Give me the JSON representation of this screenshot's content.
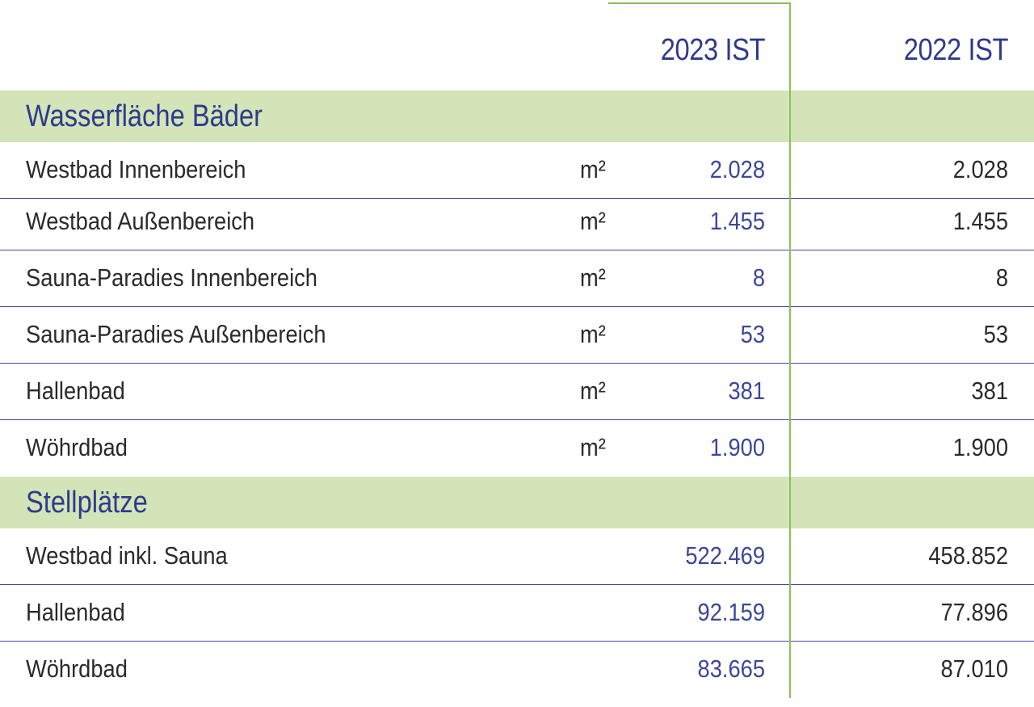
{
  "columns": {
    "year_2023": "2023 IST",
    "year_2022": "2022 IST"
  },
  "sections": [
    {
      "title": "Wasserfläche Bäder",
      "rows": [
        {
          "label": "Westbad Innenbereich",
          "unit": "m²",
          "v2023": "2.028",
          "v2022": "2.028"
        },
        {
          "label": "Westbad Außenbereich",
          "unit": "m²",
          "v2023": "1.455",
          "v2022": "1.455"
        },
        {
          "label": "Sauna-Paradies Innenbereich",
          "unit": "m²",
          "v2023": "8",
          "v2022": "8"
        },
        {
          "label": "Sauna-Paradies Außenbereich",
          "unit": "m²",
          "v2023": "53",
          "v2022": "53"
        },
        {
          "label": "Hallenbad",
          "unit": "m²",
          "v2023": "381",
          "v2022": "381"
        },
        {
          "label": "Wöhrdbad",
          "unit": "m²",
          "v2023": "1.900",
          "v2022": "1.900"
        }
      ]
    },
    {
      "title": "Stellplätze",
      "rows": [
        {
          "label": "Westbad inkl. Sauna",
          "unit": "",
          "v2023": "522.469",
          "v2022": "458.852"
        },
        {
          "label": "Hallenbad",
          "unit": "",
          "v2023": "92.159",
          "v2022": "77.896"
        },
        {
          "label": "Wöhrdbad",
          "unit": "",
          "v2023": "83.665",
          "v2022": "87.010"
        }
      ]
    }
  ],
  "colors": {
    "section_background": "#d3e4b8",
    "accent_blue": "#2e3a8c",
    "divider_green": "#8bbf5a"
  }
}
